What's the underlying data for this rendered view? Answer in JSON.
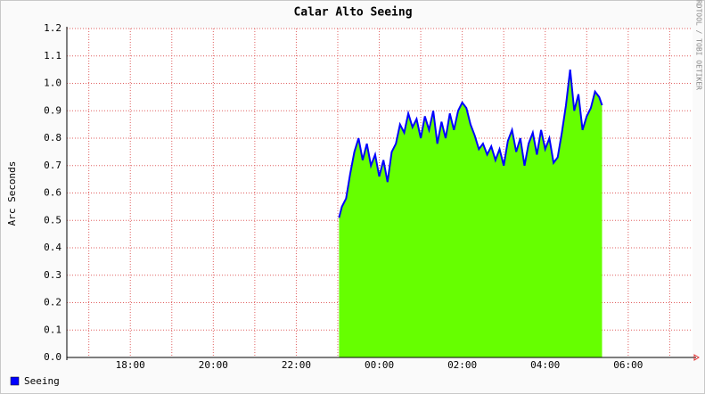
{
  "chart_data": {
    "type": "area",
    "title": "Calar Alto Seeing",
    "y_label": "Arc Seconds",
    "credit": "RRDTOOL / TOBI OETIKER",
    "x": [
      23.03,
      23.1,
      23.2,
      23.3,
      23.4,
      23.5,
      23.6,
      23.7,
      23.8,
      23.9,
      24.0,
      24.1,
      24.2,
      24.3,
      24.4,
      24.5,
      24.6,
      24.7,
      24.8,
      24.9,
      25.0,
      25.1,
      25.2,
      25.3,
      25.4,
      25.5,
      25.6,
      25.7,
      25.8,
      25.9,
      26.0,
      26.1,
      26.2,
      26.3,
      26.4,
      26.5,
      26.6,
      26.7,
      26.8,
      26.9,
      27.0,
      27.1,
      27.2,
      27.3,
      27.4,
      27.5,
      27.6,
      27.7,
      27.8,
      27.9,
      28.0,
      28.1,
      28.2,
      28.3,
      28.4,
      28.5,
      28.6,
      28.7,
      28.8,
      28.9,
      29.0,
      29.1,
      29.2,
      29.3,
      29.37
    ],
    "series": [
      {
        "name": "Seeing",
        "color": "#0000ff",
        "fill": "#66ff00",
        "values": [
          0.51,
          0.55,
          0.58,
          0.67,
          0.75,
          0.8,
          0.72,
          0.78,
          0.7,
          0.74,
          0.66,
          0.72,
          0.64,
          0.75,
          0.78,
          0.85,
          0.82,
          0.89,
          0.84,
          0.87,
          0.8,
          0.88,
          0.83,
          0.9,
          0.78,
          0.86,
          0.8,
          0.89,
          0.83,
          0.9,
          0.93,
          0.91,
          0.85,
          0.81,
          0.76,
          0.78,
          0.74,
          0.77,
          0.72,
          0.76,
          0.7,
          0.79,
          0.83,
          0.75,
          0.8,
          0.7,
          0.78,
          0.82,
          0.74,
          0.83,
          0.76,
          0.8,
          0.71,
          0.73,
          0.82,
          0.92,
          1.05,
          0.9,
          0.96,
          0.83,
          0.88,
          0.91,
          0.97,
          0.95,
          0.92
        ]
      }
    ],
    "xlim": [
      16.47,
      31.55
    ],
    "xticks": [
      {
        "value": 18,
        "label": "18:00"
      },
      {
        "value": 20,
        "label": "20:00"
      },
      {
        "value": 22,
        "label": "22:00"
      },
      {
        "value": 24,
        "label": "00:00"
      },
      {
        "value": 26,
        "label": "02:00"
      },
      {
        "value": 28,
        "label": "04:00"
      },
      {
        "value": 30,
        "label": "06:00"
      }
    ],
    "xminor": [
      17,
      19,
      21,
      23,
      25,
      27,
      29,
      31
    ],
    "ylim": [
      0,
      1.2
    ],
    "yticks": [
      {
        "value": 0,
        "label": "0.0"
      },
      0.1,
      0.2,
      0.3,
      0.4,
      0.5,
      0.6,
      0.7,
      0.8,
      0.9,
      {
        "value": 1,
        "label": "1.0"
      },
      1.1,
      1.2
    ],
    "grid": true
  }
}
